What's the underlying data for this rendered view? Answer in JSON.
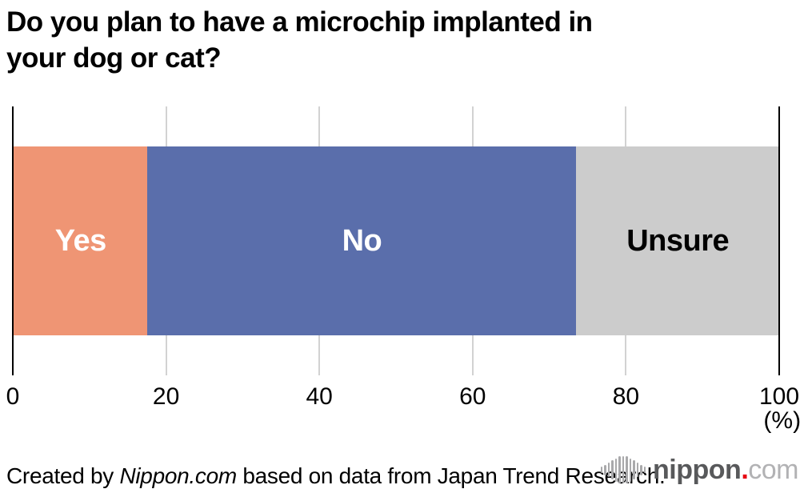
{
  "title": {
    "line1": "Do you plan to have a microchip implanted in",
    "line2": "your dog or cat?"
  },
  "chart_data": {
    "type": "bar",
    "orientation": "horizontal-stacked",
    "title": "Do you plan to have a microchip implanted in your dog or cat?",
    "categories": [
      "Yes",
      "No",
      "Unsure"
    ],
    "values": [
      17.5,
      56.0,
      26.5
    ],
    "colors": [
      "#EF9574",
      "#5A6EAB",
      "#CCCCCC"
    ],
    "label_colors": [
      "#FFFFFF",
      "#FFFFFF",
      "#000000"
    ],
    "xlim": [
      0,
      100
    ],
    "x_ticks": [
      0,
      20,
      40,
      60,
      80,
      100
    ],
    "unit": "(%)",
    "grid": true,
    "legend": "none"
  },
  "footer": {
    "prefix": "Created by ",
    "brand": "Nippon.com",
    "suffix": " based on data from Japan Trend Research."
  },
  "logo": {
    "icon": "soundwave-bars-icon",
    "name": "nippon",
    "dot": ".",
    "tld": "com",
    "name_color": "#58595B",
    "dot_color": "#E60012",
    "tld_color": "#B2B2B4"
  }
}
